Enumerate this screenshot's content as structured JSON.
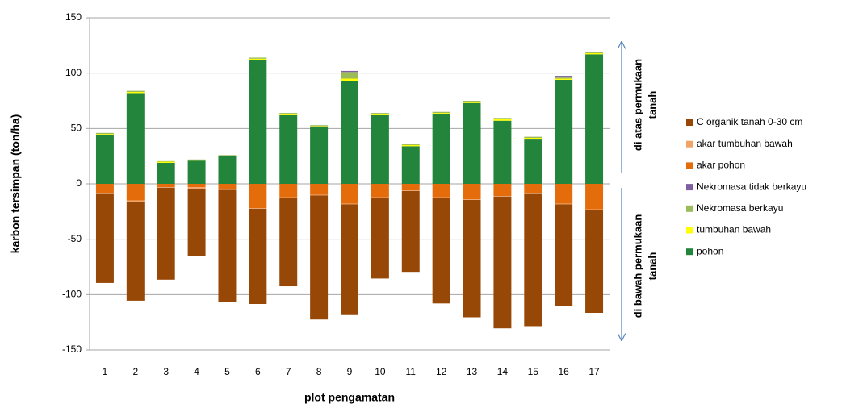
{
  "chart_data": {
    "type": "stacked_bar",
    "y_label": "karbon tersimpan (ton/ha)",
    "x_label": "plot pengamatan",
    "categories": [
      "1",
      "2",
      "3",
      "4",
      "5",
      "6",
      "7",
      "8",
      "9",
      "10",
      "11",
      "12",
      "13",
      "14",
      "15",
      "16",
      "17"
    ],
    "ylim": [
      -150,
      150
    ],
    "yticks": [
      -150,
      -100,
      -50,
      0,
      50,
      100,
      150
    ],
    "grid": true,
    "legend": "right",
    "series": [
      {
        "name": "C organik tanah 0-30 cm",
        "color": "#974706",
        "values": [
          -81,
          -89,
          -83,
          -61,
          -101,
          -86,
          -80,
          -112,
          -100,
          -73,
          -73,
          -95,
          -106,
          -119,
          -120,
          -92,
          -93
        ]
      },
      {
        "name": "akar tumbuhan bawah",
        "color": "#f0a46a",
        "values": [
          -0.5,
          -1.5,
          -0.5,
          -1.5,
          -0.5,
          -0.5,
          -0.5,
          -0.5,
          -0.5,
          -0.5,
          -0.5,
          -1,
          -0.5,
          -0.5,
          -0.5,
          -0.5,
          -0.5
        ]
      },
      {
        "name": "akar pohon",
        "color": "#e46c0a",
        "values": [
          -8,
          -15,
          -3,
          -3,
          -5,
          -22,
          -12,
          -10,
          -18,
          -12,
          -6,
          -12,
          -14,
          -11,
          -8,
          -18,
          -23
        ]
      },
      {
        "name": "Nekromasa tidak berkayu",
        "color": "#7e5fa0",
        "values": [
          0,
          0,
          0,
          0,
          0,
          0,
          0,
          0,
          1,
          0,
          0,
          0,
          0,
          0,
          0,
          1.5,
          0
        ]
      },
      {
        "name": "Nekromasa berkayu",
        "color": "#9bbb59",
        "values": [
          1,
          1,
          0.5,
          0.5,
          0.5,
          1,
          1,
          1,
          6,
          1,
          1,
          1,
          1,
          1,
          1,
          1,
          1
        ]
      },
      {
        "name": "tumbuhan bawah",
        "color": "#ffff00",
        "values": [
          1,
          1,
          1,
          0.5,
          0.5,
          1,
          1,
          1,
          2,
          1,
          1,
          1,
          1,
          1.5,
          1.5,
          1,
          1
        ]
      },
      {
        "name": "pohon",
        "color": "#23843b",
        "values": [
          44,
          82,
          19,
          21,
          25,
          112,
          62,
          51,
          93,
          62,
          34,
          63,
          73,
          57,
          40,
          94,
          117
        ]
      }
    ],
    "annotations": [
      {
        "lines": [
          "di atas permukaan",
          "tanah"
        ]
      },
      {
        "lines": [
          "di bawah permukaan",
          "tanah"
        ]
      }
    ]
  }
}
